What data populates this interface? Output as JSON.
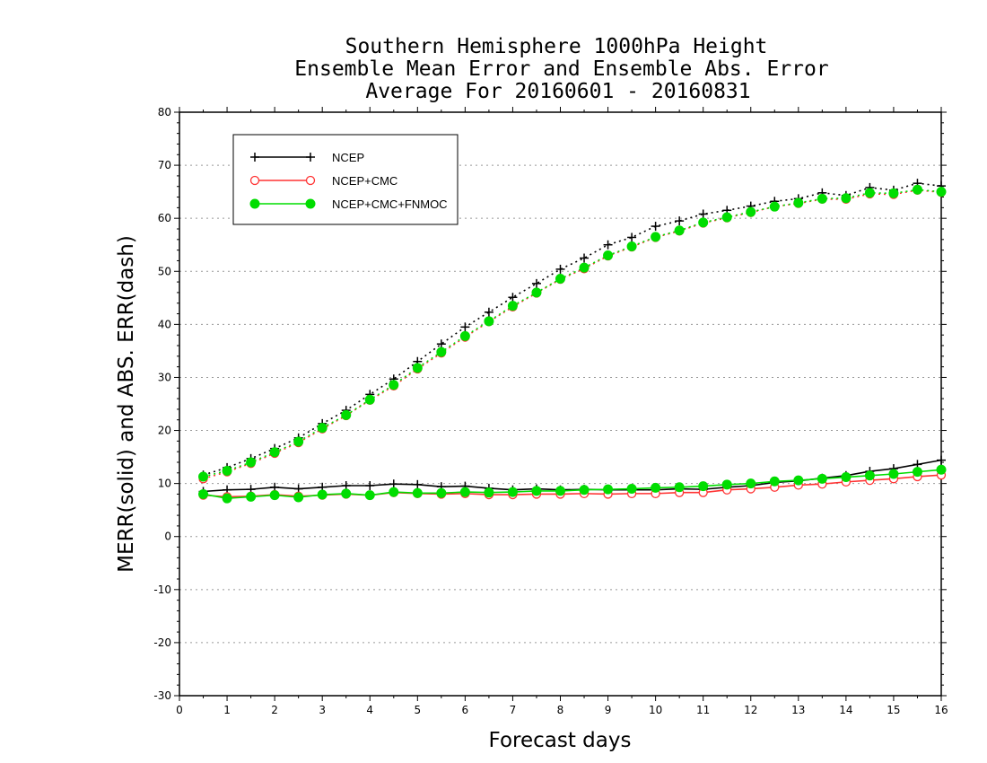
{
  "chart_data": {
    "type": "line",
    "title": [
      "Southern Hemisphere 1000hPa Height",
      "Ensemble Mean Error and Ensemble Abs. Error",
      "Average For 20160601 - 20160831"
    ],
    "xlabel": "Forecast days",
    "ylabel": "MERR(solid) and ABS. ERR(dash)",
    "xlim": [
      0,
      16
    ],
    "ylim": [
      -30,
      80
    ],
    "xticks": [
      "0",
      "1",
      "2",
      "3",
      "4",
      "5",
      "6",
      "7",
      "8",
      "9",
      "10",
      "11",
      "12",
      "13",
      "14",
      "15",
      "16"
    ],
    "yticks": [
      "-30",
      "-20",
      "-10",
      "0",
      "10",
      "20",
      "30",
      "40",
      "50",
      "60",
      "70",
      "80"
    ],
    "grid": "horizontal dotted",
    "legend_position": "top-left",
    "x": [
      0.5,
      1,
      1.5,
      2,
      2.5,
      3,
      3.5,
      4,
      4.5,
      5,
      5.5,
      6,
      6.5,
      7,
      7.5,
      8,
      8.5,
      9,
      9.5,
      10,
      10.5,
      11,
      11.5,
      12,
      12.5,
      13,
      13.5,
      14,
      14.5,
      15,
      15.5,
      16
    ],
    "series": [
      {
        "name": "NCEP",
        "color": "#000000",
        "marker": "plus",
        "merr_solid": [
          8.5,
          8.8,
          8.9,
          9.3,
          9.0,
          9.3,
          9.6,
          9.6,
          9.9,
          9.8,
          9.4,
          9.5,
          9.1,
          8.8,
          9.0,
          8.8,
          8.9,
          8.8,
          8.8,
          8.8,
          9.0,
          8.9,
          9.3,
          9.6,
          10.2,
          10.5,
          11.0,
          11.5,
          12.3,
          12.8,
          13.6,
          14.4
        ],
        "abs_err_dash": [
          11.6,
          13.0,
          14.7,
          16.6,
          18.6,
          21.3,
          23.8,
          26.8,
          29.7,
          33.0,
          36.3,
          39.5,
          42.3,
          45.1,
          47.7,
          50.4,
          52.5,
          55.0,
          56.4,
          58.5,
          59.5,
          60.8,
          61.5,
          62.3,
          63.2,
          63.7,
          64.8,
          64.3,
          65.8,
          65.3,
          66.6,
          66.1
        ]
      },
      {
        "name": "NCEP+CMC",
        "color": "#ff3333",
        "marker": "open-circle",
        "merr_solid": [
          7.8,
          7.5,
          7.6,
          7.9,
          7.6,
          7.8,
          8.0,
          7.8,
          8.3,
          8.1,
          8.0,
          8.1,
          7.9,
          7.9,
          8.0,
          8.0,
          8.1,
          8.0,
          8.1,
          8.1,
          8.3,
          8.3,
          8.8,
          9.0,
          9.3,
          9.7,
          9.9,
          10.3,
          10.6,
          10.9,
          11.3,
          11.6
        ],
        "abs_err_dash": [
          10.9,
          12.2,
          13.8,
          15.7,
          17.7,
          20.3,
          22.8,
          25.7,
          28.4,
          31.6,
          34.6,
          37.6,
          40.5,
          43.3,
          45.9,
          48.5,
          50.5,
          52.9,
          54.6,
          56.4,
          57.6,
          59.1,
          60.1,
          61.1,
          62.2,
          62.8,
          63.6,
          63.6,
          64.6,
          64.5,
          65.3,
          64.9
        ]
      },
      {
        "name": "NCEP+CMC+FNMOC",
        "color": "#00dd00",
        "marker": "filled-circle",
        "merr_solid": [
          8.0,
          7.2,
          7.5,
          7.8,
          7.4,
          7.9,
          8.1,
          7.8,
          8.4,
          8.2,
          8.2,
          8.4,
          8.3,
          8.4,
          8.6,
          8.6,
          8.8,
          8.9,
          9.0,
          9.2,
          9.3,
          9.5,
          9.8,
          10.0,
          10.4,
          10.6,
          10.9,
          11.2,
          11.5,
          11.8,
          12.2,
          12.6
        ],
        "abs_err_dash": [
          11.3,
          12.4,
          14.0,
          15.9,
          17.9,
          20.5,
          22.9,
          25.8,
          28.6,
          31.8,
          34.8,
          37.8,
          40.6,
          43.5,
          46.0,
          48.6,
          50.7,
          53.0,
          54.7,
          56.5,
          57.7,
          59.2,
          60.2,
          61.2,
          62.2,
          62.9,
          63.7,
          63.8,
          64.8,
          64.7,
          65.4,
          65.0
        ]
      }
    ]
  }
}
